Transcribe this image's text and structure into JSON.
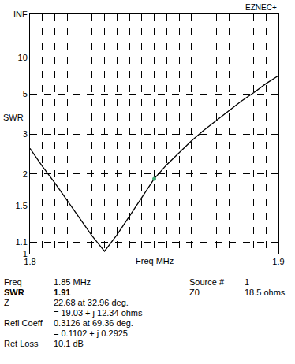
{
  "chart_data": {
    "type": "line",
    "title": "EZNEC+",
    "x_label": "Freq MHz",
    "y_label": "SWR",
    "x": [
      1.8,
      1.805,
      1.81,
      1.815,
      1.82,
      1.825,
      1.83,
      1.835,
      1.84,
      1.845,
      1.85,
      1.855,
      1.86,
      1.865,
      1.87,
      1.875,
      1.88,
      1.885,
      1.89,
      1.895,
      1.9
    ],
    "values": [
      2.57,
      2.15,
      1.84,
      1.57,
      1.35,
      1.16,
      1.02,
      1.17,
      1.37,
      1.62,
      1.91,
      2.18,
      2.45,
      2.78,
      3.13,
      3.5,
      3.95,
      4.5,
      5.1,
      5.9,
      6.8
    ],
    "color": "#000000",
    "xlim": [
      1.8,
      1.9
    ],
    "xticks": [
      1.8,
      1.9
    ],
    "xminorticks": [
      1.805,
      1.81,
      1.815,
      1.82,
      1.825,
      1.83,
      1.835,
      1.84,
      1.845,
      1.85,
      1.855,
      1.86,
      1.865,
      1.87,
      1.875,
      1.88,
      1.885,
      1.89,
      1.895
    ],
    "ylim": [
      1,
      1e+308
    ],
    "yticks": [
      1,
      1.1,
      1.5,
      2,
      3,
      5,
      10,
      {
        "value": 1e+308,
        "label": "INF"
      }
    ],
    "grid": true,
    "cursor": {
      "x": 1.85,
      "y": 1.91
    }
  },
  "readout": {
    "left": [
      [
        "Freq",
        "1.85 MHz",
        false
      ],
      [
        "SWR",
        "1.91",
        true
      ],
      [
        "Z",
        "22.68 at 32.96 deg.",
        false
      ],
      [
        "",
        "= 19.03 + j 12.34 ohms",
        false
      ],
      [
        "Refl Coeff",
        "0.3126 at 69.36 deg.",
        false
      ],
      [
        "",
        "= 0.1102 + j 0.2925",
        false
      ],
      [
        "Ret Loss",
        "10.1 dB",
        false
      ]
    ],
    "right": [
      [
        "Source #",
        "1"
      ],
      [
        "Z0",
        "18.5 ohms"
      ]
    ]
  }
}
